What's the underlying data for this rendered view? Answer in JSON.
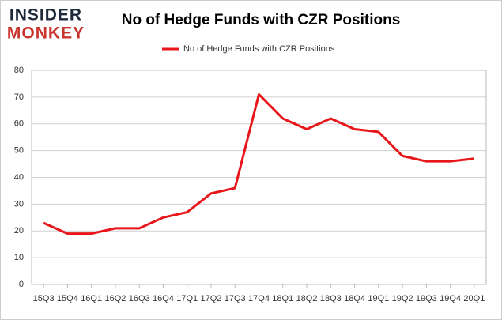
{
  "logo": {
    "top": "INSIDER",
    "bottom": "MONKEY"
  },
  "chart_data": {
    "type": "line",
    "title": "No of Hedge Funds with CZR Positions",
    "categories": [
      "15Q3",
      "15Q4",
      "16Q1",
      "16Q2",
      "16Q3",
      "16Q4",
      "17Q1",
      "17Q2",
      "17Q3",
      "17Q4",
      "18Q1",
      "18Q2",
      "18Q3",
      "18Q4",
      "19Q1",
      "19Q2",
      "19Q3",
      "19Q4",
      "20Q1"
    ],
    "series": [
      {
        "name": "No of Hedge Funds with CZR Positions",
        "color": "#e8161b",
        "values": [
          23,
          19,
          19,
          21,
          21,
          25,
          27,
          34,
          36,
          71,
          62,
          58,
          62,
          58,
          57,
          48,
          46,
          46,
          47
        ]
      }
    ],
    "ylim": [
      0,
      80
    ],
    "yticks": [
      0,
      10,
      20,
      30,
      40,
      50,
      60,
      70,
      80
    ],
    "grid": true,
    "legend": "top"
  }
}
